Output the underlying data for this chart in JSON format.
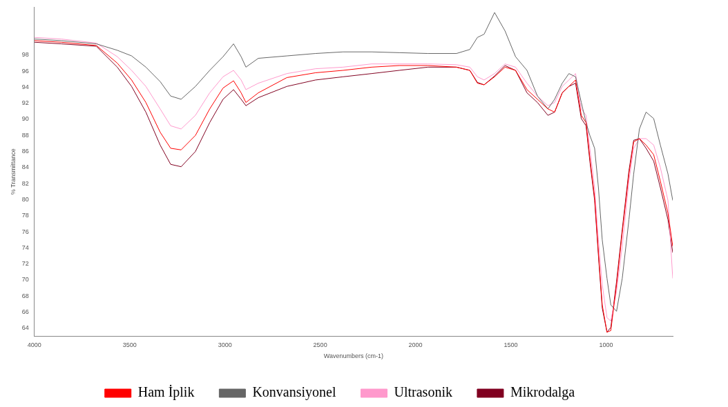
{
  "chart_data": {
    "type": "line",
    "xlabel": "Wavenumbers (cm-1)",
    "ylabel": "% Transmittance",
    "x": [
      4000,
      3860,
      3675,
      3565,
      3490,
      3415,
      3340,
      3285,
      3230,
      3155,
      3080,
      3010,
      2955,
      2915,
      2890,
      2825,
      2675,
      2525,
      2380,
      2230,
      2085,
      1935,
      1785,
      1715,
      1675,
      1640,
      1585,
      1530,
      1475,
      1415,
      1360,
      1305,
      1270,
      1230,
      1195,
      1160,
      1130,
      1105,
      1085,
      1060,
      1040,
      1020,
      995,
      975,
      945,
      915,
      880,
      855,
      825,
      790,
      750,
      715,
      675,
      650
    ],
    "series": [
      {
        "name": "Ham İplik",
        "color": "#ff0000",
        "values": [
          99.8,
          99.6,
          99.2,
          97.0,
          94.9,
          92.1,
          88.4,
          86.4,
          86.2,
          88.0,
          91.3,
          93.9,
          94.8,
          93.3,
          92.1,
          93.3,
          95.2,
          95.8,
          96.1,
          96.5,
          96.7,
          96.7,
          96.5,
          96.1,
          94.5,
          94.3,
          95.3,
          96.5,
          96.1,
          93.7,
          92.5,
          91.3,
          90.9,
          93.3,
          94.1,
          94.9,
          90.5,
          89.6,
          85.2,
          80.3,
          73.4,
          66.9,
          63.5,
          63.7,
          69.4,
          75.9,
          83.2,
          87.2,
          87.6,
          86.8,
          85.6,
          82.3,
          78.3,
          74.2
        ]
      },
      {
        "name": "Konvansiyonel",
        "color": "#666666",
        "values": [
          100.0,
          99.8,
          99.4,
          98.6,
          97.9,
          96.5,
          94.7,
          92.9,
          92.5,
          94.1,
          96.1,
          97.8,
          99.4,
          97.8,
          96.5,
          97.6,
          97.9,
          98.2,
          98.4,
          98.4,
          98.3,
          98.2,
          98.2,
          98.7,
          100.2,
          100.6,
          103.3,
          101.0,
          97.8,
          96.1,
          92.9,
          91.3,
          92.5,
          94.5,
          95.7,
          95.3,
          92.1,
          89.6,
          88.0,
          86.4,
          81.5,
          75.0,
          70.2,
          66.9,
          66.1,
          70.2,
          77.5,
          83.2,
          88.8,
          90.9,
          90.1,
          86.8,
          83.2,
          79.9
        ]
      },
      {
        "name": "Ultrasonik",
        "color": "#ff99cc",
        "values": [
          100.2,
          100.0,
          99.5,
          97.8,
          96.1,
          94.1,
          91.3,
          89.2,
          88.8,
          90.5,
          93.3,
          95.3,
          96.1,
          94.9,
          93.7,
          94.5,
          95.7,
          96.3,
          96.5,
          96.9,
          96.9,
          96.9,
          96.8,
          96.5,
          95.3,
          94.9,
          95.7,
          96.9,
          96.5,
          94.5,
          92.9,
          91.7,
          92.1,
          94.1,
          94.9,
          95.7,
          91.3,
          90.5,
          86.4,
          81.5,
          75.0,
          69.4,
          65.3,
          64.9,
          68.6,
          74.2,
          82.3,
          86.4,
          87.6,
          87.6,
          86.8,
          84.0,
          79.9,
          70.2
        ]
      },
      {
        "name": "Mikrodalga",
        "color": "#800020",
        "values": [
          99.6,
          99.4,
          99.1,
          96.5,
          94.1,
          90.9,
          86.8,
          84.4,
          84.1,
          86.0,
          89.6,
          92.5,
          93.7,
          92.5,
          91.7,
          92.7,
          94.1,
          94.9,
          95.3,
          95.7,
          96.1,
          96.5,
          96.5,
          96.1,
          94.6,
          94.3,
          95.4,
          96.7,
          96.1,
          93.3,
          92.1,
          90.5,
          90.9,
          93.3,
          94.1,
          94.5,
          90.1,
          89.2,
          84.8,
          79.9,
          73.0,
          66.5,
          63.5,
          64.1,
          69.8,
          76.3,
          83.6,
          87.4,
          87.6,
          86.4,
          84.8,
          81.5,
          77.5,
          73.4
        ]
      }
    ],
    "xlim": [
      4000,
      650
    ],
    "xticks": [
      4000,
      3500,
      3000,
      2500,
      2000,
      1500,
      1000
    ],
    "ylim": [
      63,
      104
    ],
    "yticks": [
      64,
      66,
      68,
      70,
      72,
      74,
      76,
      78,
      80,
      82,
      84,
      86,
      88,
      90,
      92,
      94,
      96,
      98
    ],
    "grid": false,
    "legend": "bottom",
    "marker": "none",
    "line_style": "solid"
  }
}
